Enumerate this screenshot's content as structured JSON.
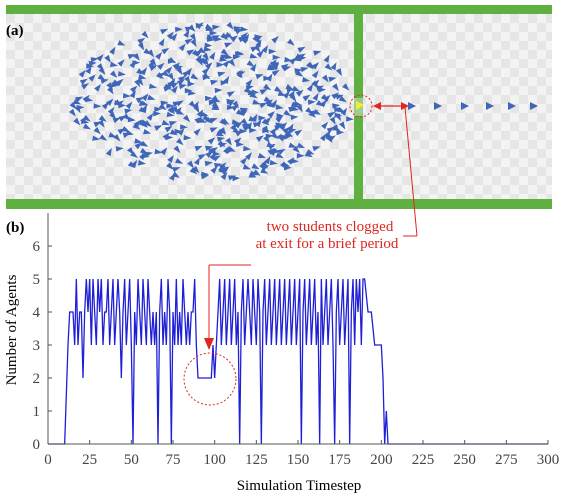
{
  "panel_a": {
    "label": "(a)",
    "colors": {
      "wall": "#5fb040",
      "agent": "#3f66b8",
      "highlight": "#f2ee2a",
      "checker_light": "#f3f3f3",
      "checker_dark": "#e6e6e6"
    },
    "annotation_color": "#e0261f"
  },
  "panel_b": {
    "label": "(b)"
  },
  "annotation": {
    "line1": "two students clogged",
    "line2": "at exit for a brief period"
  },
  "chart_data": {
    "type": "line",
    "title": "",
    "xlabel": "Simulation Timestep",
    "ylabel": "Number of Agents",
    "xlim": [
      0,
      300
    ],
    "ylim": [
      0,
      7
    ],
    "xticks": [
      0,
      25,
      50,
      75,
      100,
      125,
      150,
      175,
      200,
      225,
      250,
      275,
      300
    ],
    "yticks": [
      0,
      1,
      2,
      3,
      4,
      5,
      6
    ],
    "grid": false,
    "series": [
      {
        "color": "#1f1fd6",
        "points": [
          [
            0,
            0
          ],
          [
            10,
            0
          ],
          [
            12,
            3
          ],
          [
            13,
            4
          ],
          [
            15,
            4
          ],
          [
            16,
            3
          ],
          [
            17,
            5
          ],
          [
            18,
            3
          ],
          [
            19,
            4
          ],
          [
            20,
            4
          ],
          [
            21,
            2
          ],
          [
            22,
            4
          ],
          [
            23,
            5
          ],
          [
            24,
            4
          ],
          [
            25,
            5
          ],
          [
            26,
            3
          ],
          [
            27,
            5
          ],
          [
            28,
            4
          ],
          [
            29,
            3
          ],
          [
            30,
            5
          ],
          [
            31,
            4
          ],
          [
            32,
            5
          ],
          [
            33,
            3
          ],
          [
            34,
            4
          ],
          [
            35,
            4
          ],
          [
            36,
            5
          ],
          [
            37,
            3
          ],
          [
            38,
            4
          ],
          [
            39,
            5
          ],
          [
            40,
            3
          ],
          [
            41,
            4
          ],
          [
            42,
            5
          ],
          [
            43,
            4
          ],
          [
            44,
            2
          ],
          [
            45,
            4
          ],
          [
            46,
            5
          ],
          [
            47,
            3
          ],
          [
            48,
            4
          ],
          [
            49,
            5
          ],
          [
            50,
            3
          ],
          [
            51,
            0
          ],
          [
            52,
            4
          ],
          [
            53,
            3
          ],
          [
            54,
            5
          ],
          [
            55,
            4
          ],
          [
            56,
            3
          ],
          [
            57,
            5
          ],
          [
            58,
            4
          ],
          [
            59,
            3
          ],
          [
            60,
            5
          ],
          [
            61,
            4
          ],
          [
            62,
            3
          ],
          [
            63,
            4
          ],
          [
            64,
            3
          ],
          [
            65,
            4
          ],
          [
            66,
            0
          ],
          [
            67,
            4
          ],
          [
            68,
            5
          ],
          [
            69,
            3
          ],
          [
            70,
            4
          ],
          [
            71,
            3
          ],
          [
            72,
            5
          ],
          [
            73,
            4
          ],
          [
            74,
            0
          ],
          [
            75,
            4
          ],
          [
            76,
            3
          ],
          [
            77,
            5
          ],
          [
            78,
            3
          ],
          [
            79,
            4
          ],
          [
            80,
            3
          ],
          [
            81,
            5
          ],
          [
            82,
            4
          ],
          [
            83,
            3
          ],
          [
            84,
            4
          ],
          [
            85,
            3
          ],
          [
            86,
            4
          ],
          [
            87,
            4
          ],
          [
            88,
            5
          ],
          [
            89,
            3
          ],
          [
            90,
            2
          ],
          [
            97,
            2
          ],
          [
            98,
            2
          ],
          [
            99,
            3
          ],
          [
            100,
            2
          ],
          [
            101,
            3
          ],
          [
            102,
            4
          ],
          [
            103,
            5
          ],
          [
            104,
            3
          ],
          [
            105,
            4
          ],
          [
            106,
            5
          ],
          [
            107,
            3
          ],
          [
            108,
            4
          ],
          [
            109,
            5
          ],
          [
            110,
            3
          ],
          [
            111,
            4
          ],
          [
            112,
            5
          ],
          [
            113,
            3
          ],
          [
            114,
            4
          ],
          [
            115,
            0
          ],
          [
            116,
            4
          ],
          [
            117,
            5
          ],
          [
            118,
            3
          ],
          [
            119,
            4
          ],
          [
            120,
            5
          ],
          [
            121,
            4
          ],
          [
            122,
            3
          ],
          [
            123,
            5
          ],
          [
            124,
            4
          ],
          [
            125,
            3
          ],
          [
            126,
            5
          ],
          [
            127,
            4
          ],
          [
            128,
            0
          ],
          [
            129,
            4
          ],
          [
            130,
            5
          ],
          [
            131,
            3
          ],
          [
            132,
            4
          ],
          [
            133,
            5
          ],
          [
            134,
            3
          ],
          [
            135,
            4
          ],
          [
            136,
            5
          ],
          [
            137,
            3
          ],
          [
            138,
            4
          ],
          [
            139,
            5
          ],
          [
            140,
            3
          ],
          [
            141,
            4
          ],
          [
            142,
            5
          ],
          [
            143,
            3
          ],
          [
            144,
            4
          ],
          [
            145,
            5
          ],
          [
            146,
            3
          ],
          [
            147,
            4
          ],
          [
            148,
            5
          ],
          [
            149,
            3
          ],
          [
            150,
            4
          ],
          [
            151,
            5
          ],
          [
            152,
            0
          ],
          [
            153,
            4
          ],
          [
            154,
            5
          ],
          [
            155,
            3
          ],
          [
            156,
            4
          ],
          [
            157,
            5
          ],
          [
            158,
            3
          ],
          [
            159,
            4
          ],
          [
            160,
            5
          ],
          [
            161,
            3
          ],
          [
            162,
            4
          ],
          [
            163,
            0
          ],
          [
            164,
            5
          ],
          [
            165,
            3
          ],
          [
            166,
            4
          ],
          [
            167,
            5
          ],
          [
            168,
            3
          ],
          [
            169,
            4
          ],
          [
            170,
            5
          ],
          [
            171,
            3
          ],
          [
            172,
            0
          ],
          [
            173,
            4
          ],
          [
            174,
            5
          ],
          [
            175,
            3
          ],
          [
            176,
            4
          ],
          [
            177,
            5
          ],
          [
            178,
            3
          ],
          [
            179,
            4
          ],
          [
            180,
            5
          ],
          [
            181,
            0
          ],
          [
            182,
            4
          ],
          [
            183,
            5
          ],
          [
            184,
            3
          ],
          [
            185,
            5
          ],
          [
            186,
            4
          ],
          [
            187,
            5
          ],
          [
            188,
            3
          ],
          [
            189,
            5
          ],
          [
            190,
            5
          ],
          [
            192,
            4
          ],
          [
            194,
            4
          ],
          [
            196,
            3
          ],
          [
            198,
            3
          ],
          [
            199,
            3
          ],
          [
            200,
            3
          ],
          [
            201,
            2
          ],
          [
            202,
            0
          ],
          [
            203,
            1
          ],
          [
            204,
            0
          ],
          [
            300,
            0
          ]
        ]
      }
    ]
  }
}
